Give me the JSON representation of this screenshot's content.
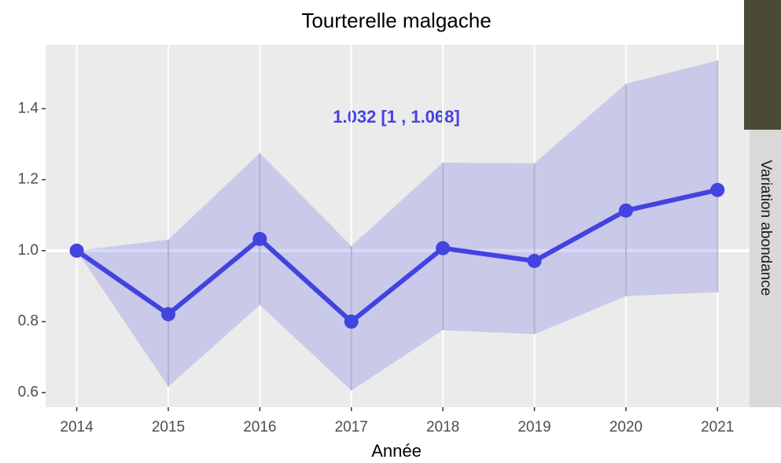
{
  "chart_data": {
    "type": "line",
    "title": "Tourterelle malgache",
    "x_label": "Année",
    "strip_label": "Variation abondance",
    "annotation": "1.032  [1 , 1.068]",
    "x": [
      2014,
      2015,
      2016,
      2017,
      2018,
      2019,
      2020,
      2021
    ],
    "series": [
      {
        "color": "#4343e0",
        "values": [
          1.0,
          0.821,
          1.033,
          0.8,
          1.007,
          0.971,
          1.113,
          1.171
        ],
        "lower": [
          1.0,
          0.617,
          0.847,
          0.606,
          0.776,
          0.765,
          0.872,
          0.883
        ],
        "upper": [
          1.0,
          1.031,
          1.275,
          1.013,
          1.248,
          1.246,
          1.47,
          1.536
        ]
      }
    ],
    "reference_line": 1,
    "xlim": [
      2013.66,
      2021.35
    ],
    "ylim": [
      0.559,
      1.58
    ],
    "xticks": [
      2014,
      2015,
      2016,
      2017,
      2018,
      2019,
      2020,
      2021
    ],
    "yticks": [
      0.6,
      0.8,
      {
        "value": 1,
        "label": "1.0"
      },
      1.2,
      1.4
    ],
    "grid": true
  }
}
